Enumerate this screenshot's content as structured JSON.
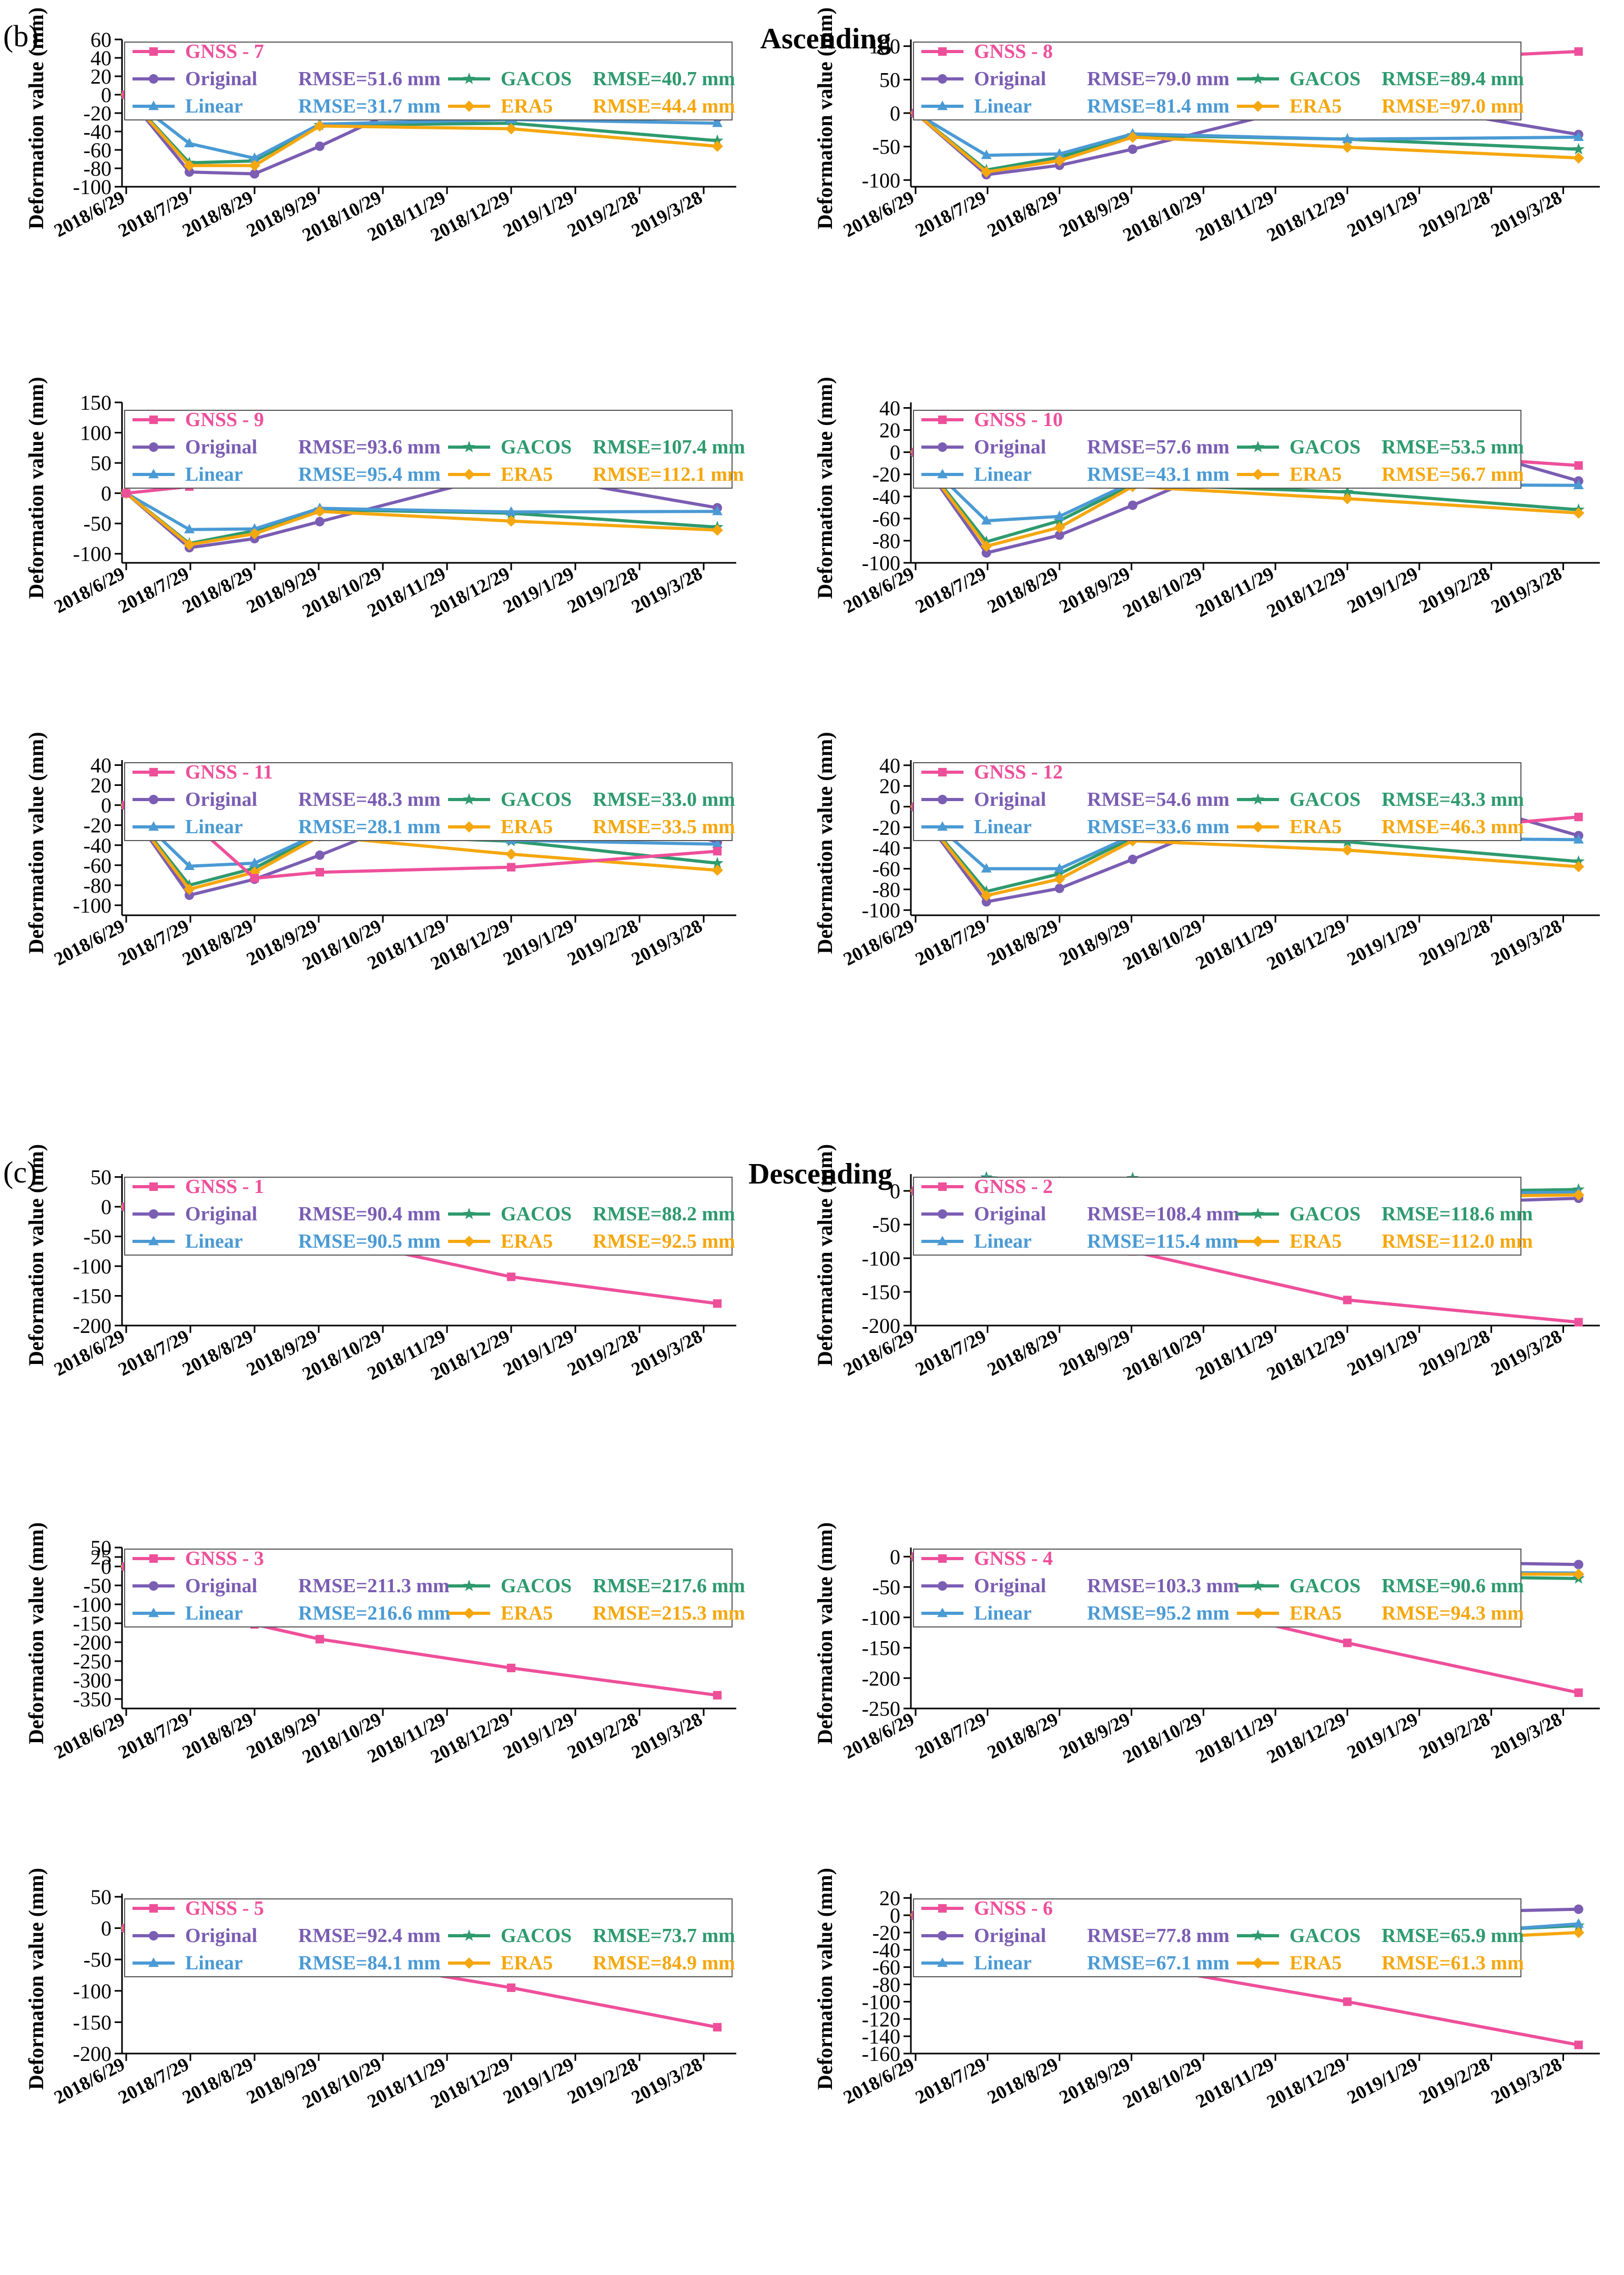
{
  "figure": {
    "panel_b_label": "(b)",
    "panel_b_title": "Ascending",
    "panel_c_label": "(c)",
    "panel_c_title": "Descending",
    "ylabel": "Deformation value (mm)",
    "x_tick_labels": [
      "2018/6/29",
      "2018/7/29",
      "2018/8/29",
      "2018/9/29",
      "2018/10/29",
      "2018/11/29",
      "2018/12/29",
      "2019/1/29",
      "2019/2/28",
      "2019/3/28"
    ],
    "series_names": [
      "GNSS",
      "Original",
      "GACOS",
      "Linear",
      "ERA5"
    ],
    "colors": {
      "gnss": "#ee4f9a",
      "original": "#7b5db3",
      "gacos": "#2e9a6e",
      "linear": "#4a9ad4",
      "era5": "#f5a70f"
    }
  },
  "chart_data": [
    {
      "type": "line",
      "panel": "(b) Ascending",
      "title": "GNSS - 7",
      "ylim": [
        -100,
        60
      ],
      "yticks": [
        -100,
        -80,
        -60,
        -40,
        -20,
        0,
        20,
        40,
        60
      ],
      "rmse": {
        "original": "RMSE=51.6 mm",
        "gacos": "RMSE=40.7 mm",
        "linear": "RMSE=31.7 mm",
        "era5": "RMSE=44.4 mm"
      },
      "x": [
        0,
        30,
        61,
        92,
        183,
        281
      ],
      "series": [
        {
          "name": "GNSS",
          "key": "gnss",
          "values": [
            0,
            -2,
            -21,
            -9,
            -8,
            -18
          ]
        },
        {
          "name": "Original",
          "key": "original",
          "values": [
            0,
            -84,
            -86,
            -56,
            41,
            -25
          ]
        },
        {
          "name": "GACOS",
          "key": "gacos",
          "values": [
            0,
            -74,
            -72,
            -33,
            -31,
            -50
          ]
        },
        {
          "name": "Linear",
          "key": "linear",
          "values": [
            0,
            -53,
            -69,
            -32,
            -27,
            -31
          ]
        },
        {
          "name": "ERA5",
          "key": "era5",
          "values": [
            0,
            -77,
            -77,
            -34,
            -37,
            -56
          ]
        }
      ]
    },
    {
      "type": "line",
      "panel": "(b) Ascending",
      "title": "GNSS - 8",
      "ylim": [
        -110,
        110
      ],
      "yticks": [
        -100,
        -50,
        0,
        50,
        100
      ],
      "rmse": {
        "original": "RMSE=79.0 mm",
        "gacos": "RMSE=89.4 mm",
        "linear": "RMSE=81.4 mm",
        "era5": "RMSE=97.0 mm"
      },
      "x": [
        0,
        30,
        61,
        92,
        183,
        281
      ],
      "series": [
        {
          "name": "GNSS",
          "key": "gnss",
          "values": [
            0,
            -4,
            6,
            7,
            76,
            92
          ]
        },
        {
          "name": "Original",
          "key": "original",
          "values": [
            0,
            -92,
            -78,
            -54,
            26,
            -32
          ]
        },
        {
          "name": "GACOS",
          "key": "gacos",
          "values": [
            0,
            -85,
            -66,
            -33,
            -39,
            -54
          ]
        },
        {
          "name": "Linear",
          "key": "linear",
          "values": [
            0,
            -63,
            -61,
            -31,
            -39,
            -36
          ]
        },
        {
          "name": "ERA5",
          "key": "era5",
          "values": [
            0,
            -88,
            -71,
            -36,
            -51,
            -67
          ]
        }
      ]
    },
    {
      "type": "line",
      "panel": "(b) Ascending",
      "title": "GNSS - 9",
      "ylim": [
        -115,
        150
      ],
      "yticks": [
        -100,
        -50,
        0,
        50,
        100,
        150
      ],
      "rmse": {
        "original": "RMSE=93.6 mm",
        "gacos": "RMSE=107.4 mm",
        "linear": "RMSE=95.4 mm",
        "era5": "RMSE=112.1 mm"
      },
      "x": [
        0,
        30,
        61,
        92,
        183,
        281
      ],
      "series": [
        {
          "name": "GNSS",
          "key": "gnss",
          "values": [
            0,
            11,
            33,
            20,
            93,
            123
          ]
        },
        {
          "name": "Original",
          "key": "original",
          "values": [
            0,
            -90,
            -75,
            -47,
            35,
            -24
          ]
        },
        {
          "name": "GACOS",
          "key": "gacos",
          "values": [
            0,
            -83,
            -62,
            -27,
            -33,
            -56
          ]
        },
        {
          "name": "Linear",
          "key": "linear",
          "values": [
            0,
            -60,
            -59,
            -25,
            -31,
            -30
          ]
        },
        {
          "name": "ERA5",
          "key": "era5",
          "values": [
            0,
            -85,
            -67,
            -30,
            -46,
            -61
          ]
        }
      ]
    },
    {
      "type": "line",
      "panel": "(b) Ascending",
      "title": "GNSS - 10",
      "ylim": [
        -100,
        45
      ],
      "yticks": [
        -100,
        -80,
        -60,
        -40,
        -20,
        0,
        20,
        40
      ],
      "rmse": {
        "original": "RMSE=57.6 mm",
        "gacos": "RMSE=53.5 mm",
        "linear": "RMSE=43.1 mm",
        "era5": "RMSE=56.7 mm"
      },
      "x": [
        0,
        30,
        61,
        92,
        183,
        281
      ],
      "series": [
        {
          "name": "GNSS",
          "key": "gnss",
          "values": [
            0,
            29,
            -25,
            -12,
            2,
            -12
          ]
        },
        {
          "name": "Original",
          "key": "original",
          "values": [
            0,
            -91,
            -75,
            -48,
            34,
            -26
          ]
        },
        {
          "name": "GACOS",
          "key": "gacos",
          "values": [
            0,
            -81,
            -62,
            -29,
            -36,
            -52
          ]
        },
        {
          "name": "Linear",
          "key": "linear",
          "values": [
            0,
            -62,
            -58,
            -27,
            -29,
            -30
          ]
        },
        {
          "name": "ERA5",
          "key": "era5",
          "values": [
            0,
            -85,
            -68,
            -31,
            -42,
            -55
          ]
        }
      ]
    },
    {
      "type": "line",
      "panel": "(b) Ascending",
      "title": "GNSS - 11",
      "ylim": [
        -110,
        45
      ],
      "yticks": [
        -100,
        -80,
        -60,
        -40,
        -20,
        0,
        20,
        40
      ],
      "rmse": {
        "original": "RMSE=48.3 mm",
        "gacos": "RMSE=33.0 mm",
        "linear": "RMSE=28.1 mm",
        "era5": "RMSE=33.5 mm"
      },
      "x": [
        0,
        30,
        61,
        92,
        183,
        281
      ],
      "series": [
        {
          "name": "GNSS",
          "key": "gnss",
          "values": [
            0,
            -15,
            -73,
            -67,
            -62,
            -46
          ]
        },
        {
          "name": "Original",
          "key": "original",
          "values": [
            0,
            -90,
            -74,
            -50,
            26,
            -37
          ]
        },
        {
          "name": "GACOS",
          "key": "gacos",
          "values": [
            0,
            -80,
            -63,
            -29,
            -36,
            -58
          ]
        },
        {
          "name": "Linear",
          "key": "linear",
          "values": [
            0,
            -61,
            -58,
            -28,
            -35,
            -39
          ]
        },
        {
          "name": "ERA5",
          "key": "era5",
          "values": [
            0,
            -84,
            -67,
            -31,
            -49,
            -65
          ]
        }
      ]
    },
    {
      "type": "line",
      "panel": "(b) Ascending",
      "title": "GNSS - 12",
      "ylim": [
        -105,
        45
      ],
      "yticks": [
        -100,
        -80,
        -60,
        -40,
        -20,
        0,
        20,
        40
      ],
      "rmse": {
        "original": "RMSE=54.6 mm",
        "gacos": "RMSE=43.3 mm",
        "linear": "RMSE=33.6 mm",
        "era5": "RMSE=46.3 mm"
      },
      "x": [
        0,
        30,
        61,
        92,
        183,
        281
      ],
      "series": [
        {
          "name": "GNSS",
          "key": "gnss",
          "values": [
            0,
            -21,
            7,
            -22,
            -29,
            -10
          ]
        },
        {
          "name": "Original",
          "key": "original",
          "values": [
            0,
            -92,
            -79,
            -51,
            36,
            -28
          ]
        },
        {
          "name": "GACOS",
          "key": "gacos",
          "values": [
            0,
            -82,
            -65,
            -30,
            -34,
            -53
          ]
        },
        {
          "name": "Linear",
          "key": "linear",
          "values": [
            0,
            -60,
            -60,
            -28,
            -30,
            -32
          ]
        },
        {
          "name": "ERA5",
          "key": "era5",
          "values": [
            0,
            -86,
            -70,
            -33,
            -42,
            -58
          ]
        }
      ]
    },
    {
      "type": "line",
      "panel": "(c) Descending",
      "title": "GNSS - 1",
      "ylim": [
        -200,
        55
      ],
      "yticks": [
        -200,
        -150,
        -100,
        -50,
        0,
        50
      ],
      "rmse": {
        "original": "RMSE=90.4 mm",
        "gacos": "RMSE=88.2 mm",
        "linear": "RMSE=90.5 mm",
        "era5": "RMSE=92.5 mm"
      },
      "x": [
        0,
        30,
        61,
        92,
        183,
        281
      ],
      "series": [
        {
          "name": "GNSS",
          "key": "gnss",
          "values": [
            0,
            19,
            -54,
            -49,
            -118,
            -163
          ]
        },
        {
          "name": "Original",
          "key": "original",
          "values": [
            0,
            -3,
            5,
            6,
            6,
            -3
          ]
        },
        {
          "name": "GACOS",
          "key": "gacos",
          "values": [
            0,
            -3,
            -2,
            4,
            5,
            -4
          ]
        },
        {
          "name": "Linear",
          "key": "linear",
          "values": [
            0,
            0,
            3,
            6,
            8,
            0
          ]
        },
        {
          "name": "ERA5",
          "key": "era5",
          "values": [
            0,
            2,
            4,
            8,
            10,
            2
          ]
        }
      ]
    },
    {
      "type": "line",
      "panel": "(c) Descending",
      "title": "GNSS - 2",
      "ylim": [
        -200,
        25
      ],
      "yticks": [
        -200,
        -150,
        -100,
        -50,
        0
      ],
      "rmse": {
        "original": "RMSE=108.4 mm",
        "gacos": "RMSE=118.6 mm",
        "linear": "RMSE=115.4 mm",
        "era5": "RMSE=112.0 mm"
      },
      "x": [
        0,
        30,
        61,
        92,
        183,
        281
      ],
      "series": [
        {
          "name": "GNSS",
          "key": "gnss",
          "values": [
            0,
            -17,
            -64,
            -90,
            -162,
            -195
          ]
        },
        {
          "name": "Original",
          "key": "original",
          "values": [
            0,
            15,
            12,
            12,
            -22,
            -11
          ]
        },
        {
          "name": "GACOS",
          "key": "gacos",
          "values": [
            0,
            20,
            13,
            19,
            -3,
            2
          ]
        },
        {
          "name": "Linear",
          "key": "linear",
          "values": [
            0,
            17,
            12,
            14,
            -5,
            -2
          ]
        },
        {
          "name": "ERA5",
          "key": "era5",
          "values": [
            0,
            10,
            12,
            11,
            -10,
            -6
          ]
        }
      ]
    },
    {
      "type": "line",
      "panel": "(c) Descending",
      "title": "GNSS - 3",
      "ylim": [
        -375,
        50
      ],
      "yticks": [
        -350,
        -300,
        -250,
        -200,
        -150,
        -100,
        -50,
        0,
        25,
        50
      ],
      "rmse": {
        "original": "RMSE=211.3 mm",
        "gacos": "RMSE=217.6 mm",
        "linear": "RMSE=216.6 mm",
        "era5": "RMSE=215.3 mm"
      },
      "x": [
        0,
        30,
        61,
        92,
        183,
        281
      ],
      "series": [
        {
          "name": "GNSS",
          "key": "gnss",
          "values": [
            0,
            -77,
            -153,
            -192,
            -268,
            -340
          ]
        },
        {
          "name": "Original",
          "key": "original",
          "values": [
            0,
            10,
            17,
            12,
            -8,
            5
          ]
        },
        {
          "name": "GACOS",
          "key": "gacos",
          "values": [
            0,
            14,
            21,
            13,
            2,
            14
          ]
        },
        {
          "name": "Linear",
          "key": "linear",
          "values": [
            0,
            10,
            16,
            12,
            3,
            12
          ]
        },
        {
          "name": "ERA5",
          "key": "era5",
          "values": [
            0,
            5,
            13,
            11,
            7,
            16
          ]
        }
      ]
    },
    {
      "type": "line",
      "panel": "(c) Descending",
      "title": "GNSS - 4",
      "ylim": [
        -250,
        15
      ],
      "yticks": [
        -250,
        -200,
        -150,
        -100,
        -50,
        0
      ],
      "rmse": {
        "original": "RMSE=103.3 mm",
        "gacos": "RMSE=90.6 mm",
        "linear": "RMSE=95.2 mm",
        "era5": "RMSE=94.3 mm"
      },
      "x": [
        0,
        30,
        61,
        92,
        183,
        281
      ],
      "series": [
        {
          "name": "GNSS",
          "key": "gnss",
          "values": [
            0,
            -24,
            -32,
            -59,
            -142,
            -224
          ]
        },
        {
          "name": "Original",
          "key": "original",
          "values": [
            0,
            -25,
            -32,
            -20,
            -7,
            -13
          ]
        },
        {
          "name": "GACOS",
          "key": "gacos",
          "values": [
            0,
            -25,
            -34,
            -24,
            -31,
            -36
          ]
        },
        {
          "name": "Linear",
          "key": "linear",
          "values": [
            0,
            -24,
            -33,
            -18,
            -25,
            -27
          ]
        },
        {
          "name": "ERA5",
          "key": "era5",
          "values": [
            0,
            -27,
            -33,
            -22,
            -28,
            -29
          ]
        }
      ]
    },
    {
      "type": "line",
      "panel": "(c) Descending",
      "title": "GNSS - 5",
      "ylim": [
        -200,
        55
      ],
      "yticks": [
        -200,
        -150,
        -100,
        -50,
        0,
        50
      ],
      "rmse": {
        "original": "RMSE=92.4 mm",
        "gacos": "RMSE=73.7 mm",
        "linear": "RMSE=84.1 mm",
        "era5": "RMSE=84.9 mm"
      },
      "x": [
        0,
        30,
        61,
        92,
        183,
        281
      ],
      "series": [
        {
          "name": "GNSS",
          "key": "gnss",
          "values": [
            0,
            -15,
            -22,
            -44,
            -95,
            -158
          ]
        },
        {
          "name": "Original",
          "key": "original",
          "values": [
            0,
            -12,
            9,
            4,
            30,
            22
          ]
        },
        {
          "name": "GACOS",
          "key": "gacos",
          "values": [
            0,
            -13,
            -11,
            -9,
            -1,
            -6
          ]
        },
        {
          "name": "Linear",
          "key": "linear",
          "values": [
            0,
            3,
            8,
            5,
            11,
            11
          ]
        },
        {
          "name": "ERA5",
          "key": "era5",
          "values": [
            0,
            6,
            4,
            3,
            12,
            10
          ]
        }
      ]
    },
    {
      "type": "line",
      "panel": "(c) Descending",
      "title": "GNSS - 6",
      "ylim": [
        -160,
        25
      ],
      "yticks": [
        -160,
        -140,
        -120,
        -100,
        -80,
        -60,
        -40,
        -20,
        0,
        20
      ],
      "rmse": {
        "original": "RMSE=77.8 mm",
        "gacos": "RMSE=65.9 mm",
        "linear": "RMSE=67.1 mm",
        "era5": "RMSE=61.3 mm"
      },
      "x": [
        0,
        30,
        61,
        92,
        183,
        281
      ],
      "series": [
        {
          "name": "GNSS",
          "key": "gnss",
          "values": [
            0,
            -23,
            -50,
            -57,
            -100,
            -150
          ]
        },
        {
          "name": "Original",
          "key": "original",
          "values": [
            0,
            -21,
            -34,
            -28,
            1,
            7
          ]
        },
        {
          "name": "GACOS",
          "key": "gacos",
          "values": [
            0,
            -20,
            -31,
            -25,
            -25,
            -12
          ]
        },
        {
          "name": "Linear",
          "key": "linear",
          "values": [
            0,
            -23,
            -35,
            -27,
            -29,
            -10
          ]
        },
        {
          "name": "ERA5",
          "key": "era5",
          "values": [
            0,
            -28,
            -38,
            -30,
            -33,
            -20
          ]
        }
      ]
    }
  ]
}
